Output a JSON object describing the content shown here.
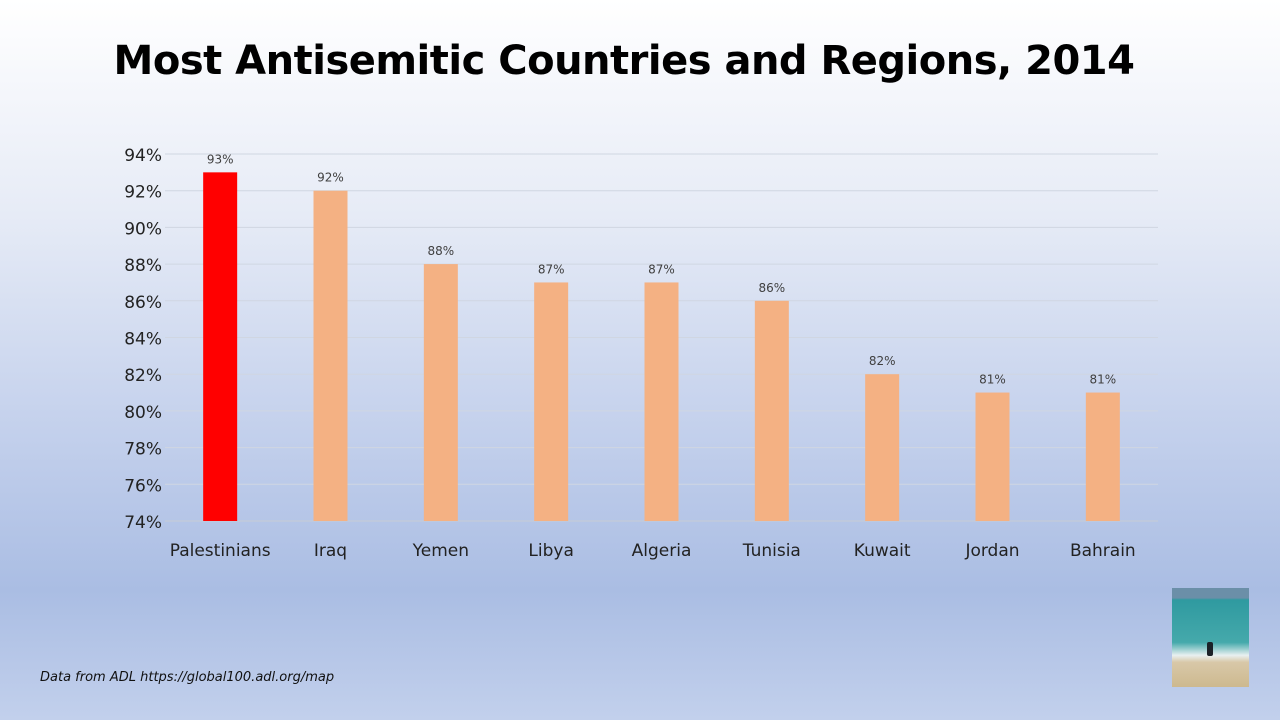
{
  "chart_data": {
    "type": "bar",
    "title": "Most Antisemitic Countries and Regions, 2014",
    "categories": [
      "Palestinians",
      "Iraq",
      "Yemen",
      "Libya",
      "Algeria",
      "Tunisia",
      "Kuwait",
      "Jordan",
      "Bahrain"
    ],
    "values": [
      93,
      92,
      88,
      87,
      87,
      86,
      82,
      81,
      81
    ],
    "data_labels": [
      "93%",
      "92%",
      "88%",
      "87%",
      "87%",
      "86%",
      "82%",
      "81%",
      "81%"
    ],
    "highlight_index": 0,
    "colors": {
      "highlight": "#ff0000",
      "default": "#f4b183",
      "grid": "#d0d6e2",
      "axis": "#c8cdd6",
      "text": "#222222",
      "label": "#404040"
    },
    "ylim": [
      74,
      94
    ],
    "yticks": [
      74,
      76,
      78,
      80,
      82,
      84,
      86,
      88,
      90,
      92,
      94
    ],
    "ytick_labels": [
      "74%",
      "76%",
      "78%",
      "80%",
      "82%",
      "84%",
      "86%",
      "88%",
      "90%",
      "92%",
      "94%"
    ],
    "xlabel": "",
    "ylabel": "",
    "grid": true,
    "legend": "none"
  },
  "source": "Data from ADL https://global100.adl.org/map",
  "thumbnail": {
    "caption": "photo of person on beach"
  }
}
